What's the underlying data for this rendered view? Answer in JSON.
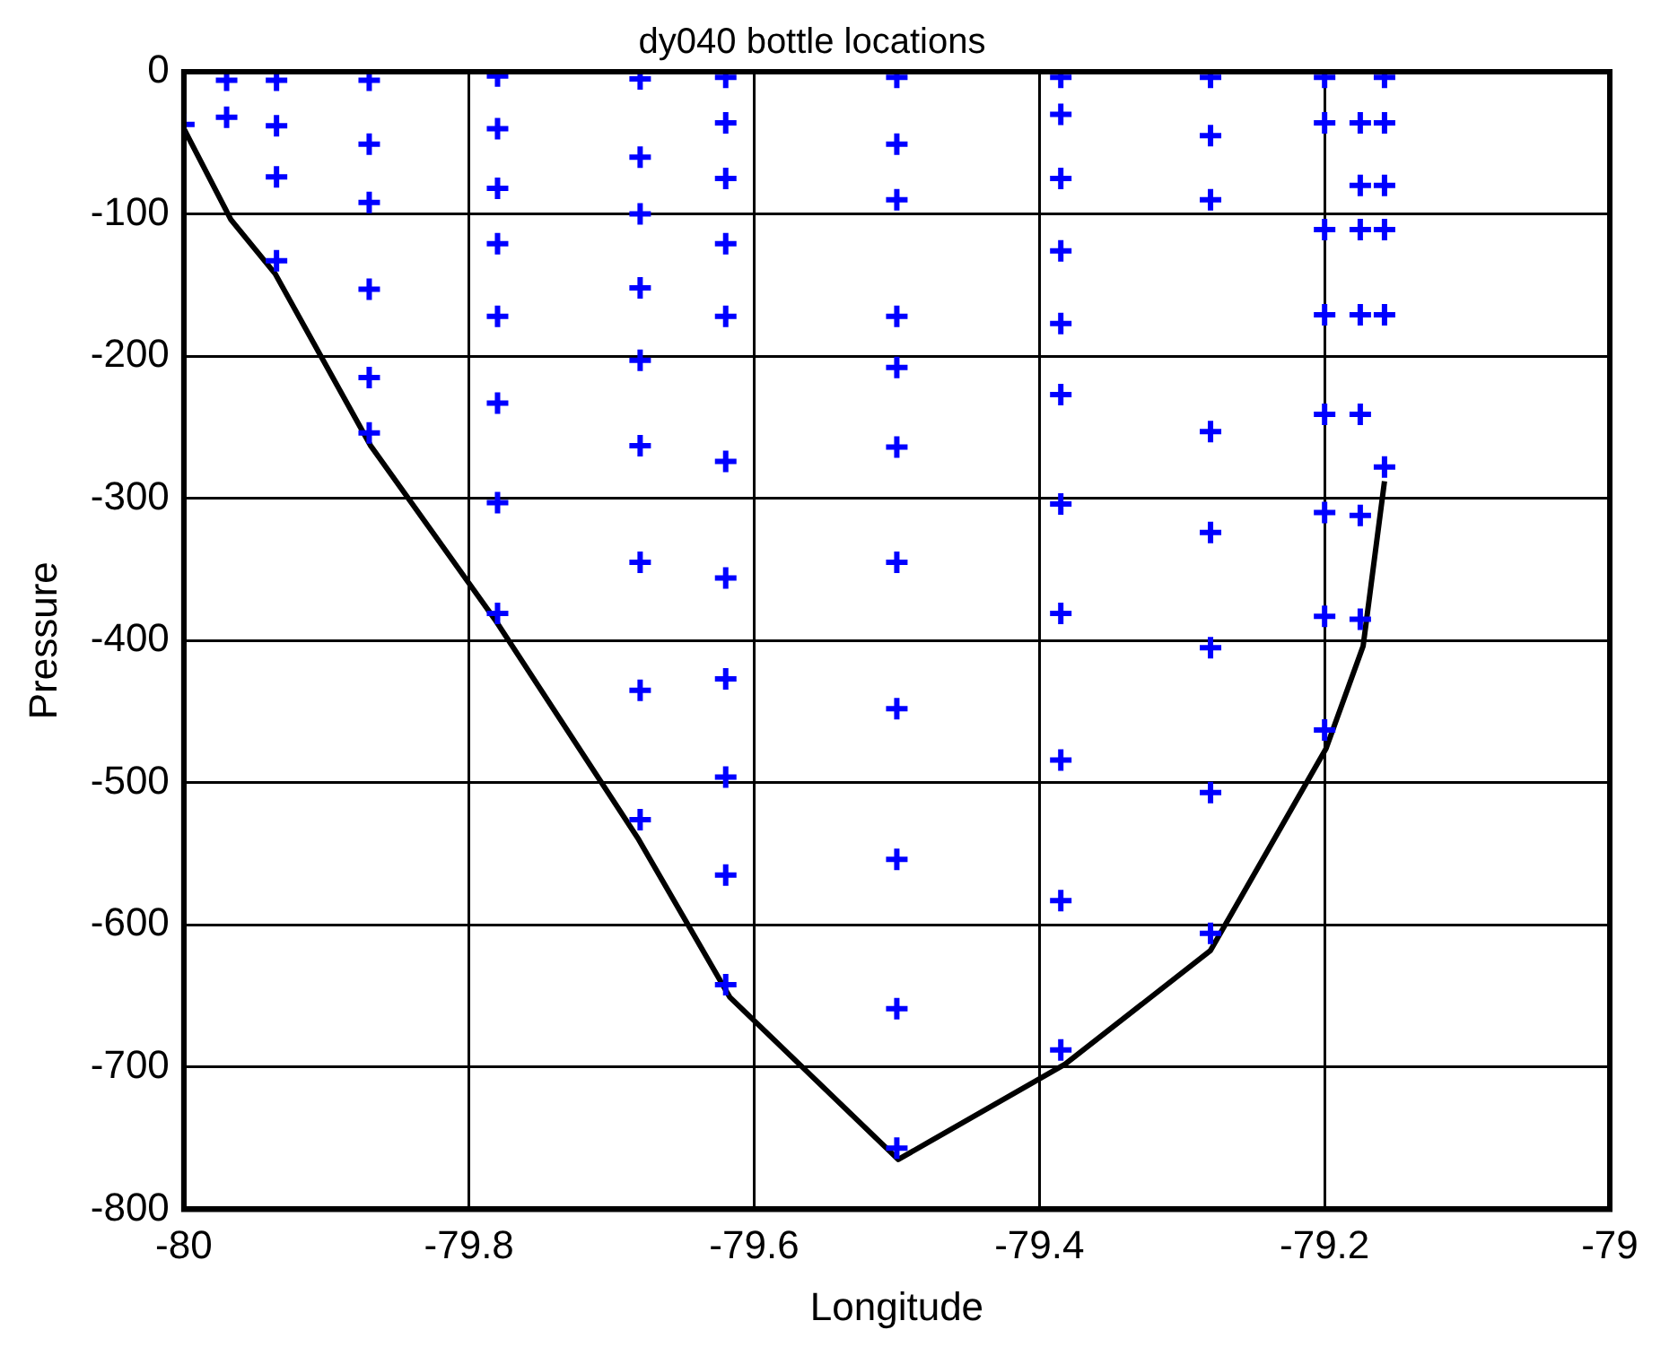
{
  "chart_data": {
    "type": "scatter",
    "title": "dy040 bottle locations",
    "xlabel": "Longitude",
    "ylabel": "Pressure",
    "xlim": [
      -80,
      -79
    ],
    "xticks": [
      -80,
      -79.8,
      -79.6,
      -79.4,
      -79.2,
      -79
    ],
    "ylim": [
      -800,
      0
    ],
    "yticks": [
      -800,
      -700,
      -600,
      -500,
      -400,
      -300,
      -200,
      -100,
      0
    ],
    "grid": true,
    "legend": false,
    "series": [
      {
        "type": "scatter",
        "color": "#0000ff",
        "marker": "cross",
        "x": [
          -80.0,
          -79.97,
          -79.97,
          -79.935,
          -79.935,
          -79.935,
          -79.935,
          -79.87,
          -79.87,
          -79.87,
          -79.87,
          -79.87,
          -79.87,
          -79.78,
          -79.78,
          -79.78,
          -79.78,
          -79.78,
          -79.78,
          -79.78,
          -79.78,
          -79.68,
          -79.68,
          -79.68,
          -79.68,
          -79.68,
          -79.68,
          -79.68,
          -79.68,
          -79.68,
          -79.62,
          -79.62,
          -79.62,
          -79.62,
          -79.62,
          -79.62,
          -79.62,
          -79.62,
          -79.62,
          -79.62,
          -79.62,
          -79.5,
          -79.5,
          -79.5,
          -79.5,
          -79.5,
          -79.5,
          -79.5,
          -79.5,
          -79.5,
          -79.5,
          -79.5,
          -79.385,
          -79.385,
          -79.385,
          -79.385,
          -79.385,
          -79.385,
          -79.385,
          -79.385,
          -79.385,
          -79.385,
          -79.385,
          -79.28,
          -79.28,
          -79.28,
          -79.28,
          -79.28,
          -79.28,
          -79.28,
          -79.28,
          -79.2,
          -79.2,
          -79.2,
          -79.2,
          -79.2,
          -79.2,
          -79.2,
          -79.2,
          -79.175,
          -79.175,
          -79.175,
          -79.175,
          -79.175,
          -79.175,
          -79.175,
          -79.158,
          -79.158,
          -79.158,
          -79.158,
          -79.158,
          -79.158
        ],
        "values": [
          -37,
          -6,
          -32,
          -6,
          -38,
          -74,
          -133,
          -6,
          -51,
          -92,
          -153,
          -215,
          -254,
          -3,
          -40,
          -82,
          -121,
          -172,
          -233,
          -303,
          -381,
          -5,
          -60,
          -100,
          -152,
          -203,
          -263,
          -345,
          -435,
          -526,
          -4,
          -36,
          -75,
          -121,
          -172,
          -274,
          -356,
          -427,
          -496,
          -565,
          -642,
          -4,
          -51,
          -90,
          -172,
          -208,
          -264,
          -345,
          -448,
          -554,
          -659,
          -757,
          -4,
          -30,
          -75,
          -126,
          -177,
          -227,
          -304,
          -381,
          -484,
          -583,
          -688,
          -4,
          -45,
          -90,
          -253,
          -324,
          -405,
          -507,
          -606,
          -4,
          -36,
          -111,
          -171,
          -241,
          -310,
          -383,
          -463,
          -36,
          -80,
          -111,
          -171,
          -241,
          -312,
          -385,
          -4,
          -36,
          -80,
          -111,
          -171,
          -278
        ]
      },
      {
        "type": "line",
        "color": "#000000",
        "marker": "none",
        "x": [
          -80.0,
          -79.967,
          -79.936,
          -79.869,
          -79.782,
          -79.681,
          -79.617,
          -79.499,
          -79.382,
          -79.28,
          -79.199,
          -79.173,
          -79.158
        ],
        "values": [
          -40,
          -104,
          -142,
          -263,
          -385,
          -540,
          -651,
          -765,
          -698,
          -618,
          -476,
          -404,
          -288
        ]
      }
    ]
  }
}
